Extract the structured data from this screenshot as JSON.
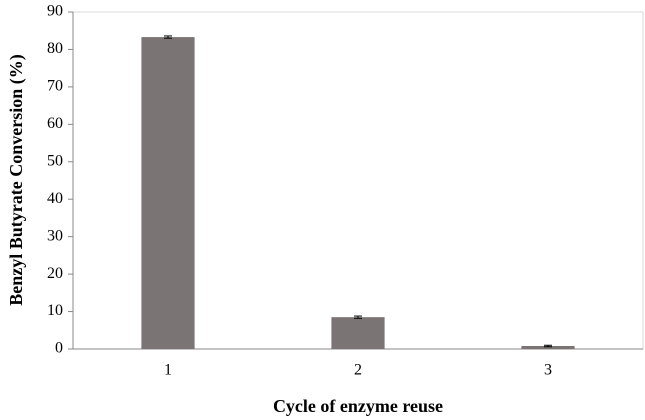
{
  "chart_data": {
    "type": "bar",
    "xlabel": "Cycle of enzyme reuse",
    "ylabel": "Benzyl Butyrate Conversion (%)",
    "categories": [
      "1",
      "2",
      "3"
    ],
    "values": [
      83.3,
      8.5,
      0.8
    ],
    "errors": [
      0.3,
      0.3,
      0.2
    ],
    "color": "#7a7574",
    "ylim": [
      0,
      90
    ],
    "yticks": [
      0,
      10,
      20,
      30,
      40,
      50,
      60,
      70,
      80,
      90
    ],
    "grid": false
  }
}
